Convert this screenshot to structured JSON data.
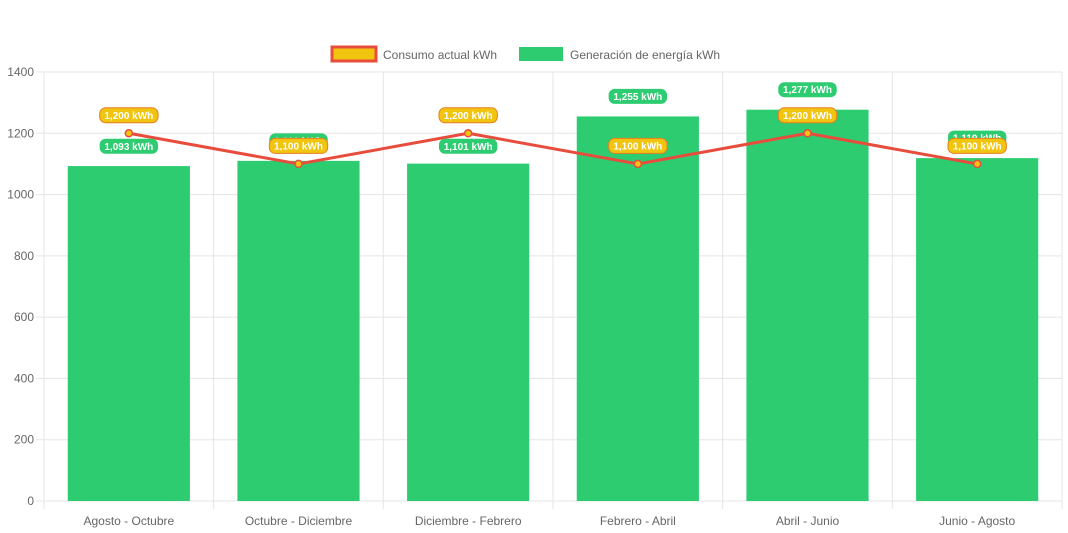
{
  "chart_data": {
    "type": "bar",
    "categories": [
      "Agosto - Octubre",
      "Octubre - Diciembre",
      "Diciembre - Febrero",
      "Febrero - Abril",
      "Abril - Junio",
      "Junio - Agosto"
    ],
    "series": [
      {
        "name": "Consumo actual kWh",
        "type": "line",
        "values": [
          1200,
          1100,
          1200,
          1100,
          1200,
          1100
        ],
        "labels": [
          "1,200 kWh",
          "1,100 kWh",
          "1,200 kWh",
          "1,100 kWh",
          "1,200 kWh",
          "1,100 kWh"
        ],
        "color": "#e74c3c",
        "fill": "#f1c40f"
      },
      {
        "name": "Generación de energía kWh",
        "type": "bar",
        "values": [
          1093,
          1110,
          1101,
          1255,
          1277,
          1119
        ],
        "labels": [
          "1,093 kWh",
          "1,110 kWh",
          "1,101 kWh",
          "1,255 kWh",
          "1,277 kWh",
          "1,119 kWh"
        ],
        "color": "#2ecc71"
      }
    ],
    "ylim": [
      0,
      1400
    ],
    "yticks": [
      0,
      200,
      400,
      600,
      800,
      1000,
      1200,
      1400
    ],
    "grid": true,
    "legend_position": "top"
  }
}
